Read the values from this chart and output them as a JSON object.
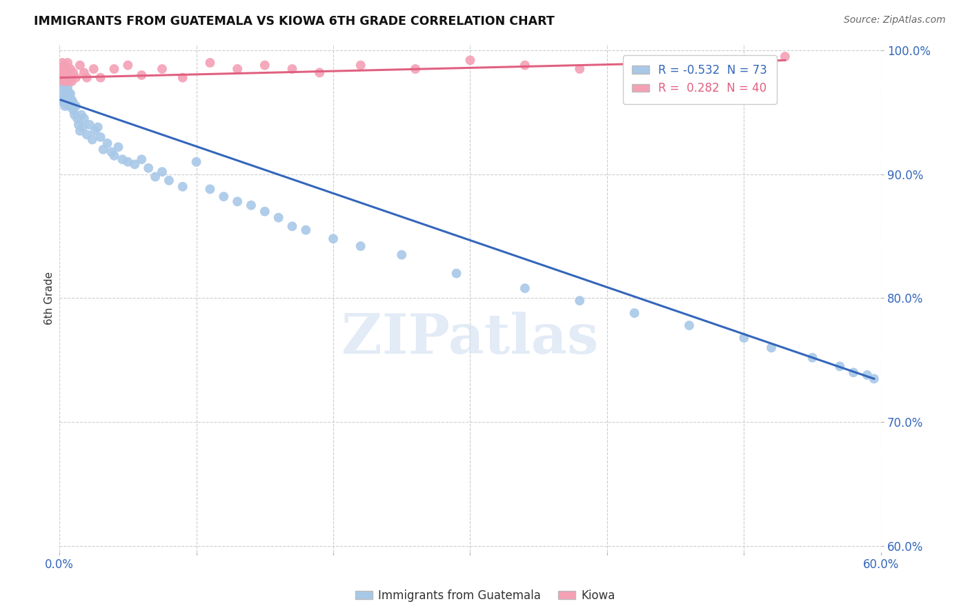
{
  "title": "IMMIGRANTS FROM GUATEMALA VS KIOWA 6TH GRADE CORRELATION CHART",
  "source": "Source: ZipAtlas.com",
  "ylabel": "6th Grade",
  "xlim": [
    0.0,
    0.6
  ],
  "ylim": [
    0.595,
    1.005
  ],
  "xtick_positions": [
    0.0,
    0.1,
    0.2,
    0.3,
    0.4,
    0.5,
    0.6
  ],
  "xticklabels": [
    "0.0%",
    "",
    "",
    "",
    "",
    "",
    "60.0%"
  ],
  "ytick_positions": [
    0.6,
    0.7,
    0.8,
    0.9,
    1.0
  ],
  "yticklabels": [
    "60.0%",
    "70.0%",
    "80.0%",
    "90.0%",
    "100.0%"
  ],
  "blue_R": -0.532,
  "blue_N": 73,
  "pink_R": 0.282,
  "pink_N": 40,
  "blue_color": "#a8c8e8",
  "pink_color": "#f4a0b5",
  "blue_line_color": "#3366bb",
  "pink_line_color": "#e06080",
  "watermark": "ZIPatlas",
  "legend_label_blue": "Immigrants from Guatemala",
  "legend_label_pink": "Kiowa",
  "blue_x": [
    0.001,
    0.002,
    0.002,
    0.003,
    0.003,
    0.003,
    0.004,
    0.004,
    0.005,
    0.005,
    0.005,
    0.006,
    0.006,
    0.007,
    0.007,
    0.007,
    0.008,
    0.008,
    0.009,
    0.01,
    0.01,
    0.011,
    0.012,
    0.013,
    0.014,
    0.015,
    0.016,
    0.017,
    0.018,
    0.02,
    0.022,
    0.024,
    0.026,
    0.028,
    0.03,
    0.032,
    0.035,
    0.038,
    0.04,
    0.043,
    0.046,
    0.05,
    0.055,
    0.06,
    0.065,
    0.07,
    0.075,
    0.08,
    0.09,
    0.1,
    0.11,
    0.12,
    0.13,
    0.14,
    0.15,
    0.16,
    0.17,
    0.18,
    0.2,
    0.22,
    0.25,
    0.29,
    0.34,
    0.38,
    0.42,
    0.46,
    0.5,
    0.52,
    0.55,
    0.57,
    0.58,
    0.59,
    0.595
  ],
  "blue_y": [
    0.97,
    0.96,
    0.975,
    0.965,
    0.958,
    0.972,
    0.962,
    0.955,
    0.968,
    0.958,
    0.975,
    0.96,
    0.97,
    0.955,
    0.965,
    0.975,
    0.958,
    0.965,
    0.96,
    0.952,
    0.958,
    0.948,
    0.955,
    0.945,
    0.94,
    0.935,
    0.948,
    0.938,
    0.945,
    0.932,
    0.94,
    0.928,
    0.935,
    0.938,
    0.93,
    0.92,
    0.925,
    0.918,
    0.915,
    0.922,
    0.912,
    0.91,
    0.908,
    0.912,
    0.905,
    0.898,
    0.902,
    0.895,
    0.89,
    0.91,
    0.888,
    0.882,
    0.878,
    0.875,
    0.87,
    0.865,
    0.858,
    0.855,
    0.848,
    0.842,
    0.835,
    0.82,
    0.808,
    0.798,
    0.788,
    0.778,
    0.768,
    0.76,
    0.752,
    0.745,
    0.74,
    0.738,
    0.735
  ],
  "pink_x": [
    0.001,
    0.002,
    0.002,
    0.003,
    0.003,
    0.004,
    0.004,
    0.005,
    0.005,
    0.006,
    0.006,
    0.007,
    0.008,
    0.009,
    0.01,
    0.012,
    0.015,
    0.018,
    0.02,
    0.025,
    0.03,
    0.04,
    0.05,
    0.06,
    0.075,
    0.09,
    0.11,
    0.13,
    0.15,
    0.17,
    0.19,
    0.22,
    0.26,
    0.3,
    0.34,
    0.38,
    0.42,
    0.46,
    0.49,
    0.53
  ],
  "pink_y": [
    0.985,
    0.978,
    0.99,
    0.982,
    0.975,
    0.988,
    0.978,
    0.985,
    0.975,
    0.982,
    0.99,
    0.978,
    0.985,
    0.975,
    0.982,
    0.978,
    0.988,
    0.982,
    0.978,
    0.985,
    0.978,
    0.985,
    0.988,
    0.98,
    0.985,
    0.978,
    0.99,
    0.985,
    0.988,
    0.985,
    0.982,
    0.988,
    0.985,
    0.992,
    0.988,
    0.985,
    0.992,
    0.988,
    0.99,
    0.995
  ],
  "blue_trendline_x": [
    0.001,
    0.595
  ],
  "blue_trendline_y": [
    0.96,
    0.735
  ],
  "pink_trendline_x": [
    0.001,
    0.53
  ],
  "pink_trendline_y": [
    0.978,
    0.992
  ]
}
